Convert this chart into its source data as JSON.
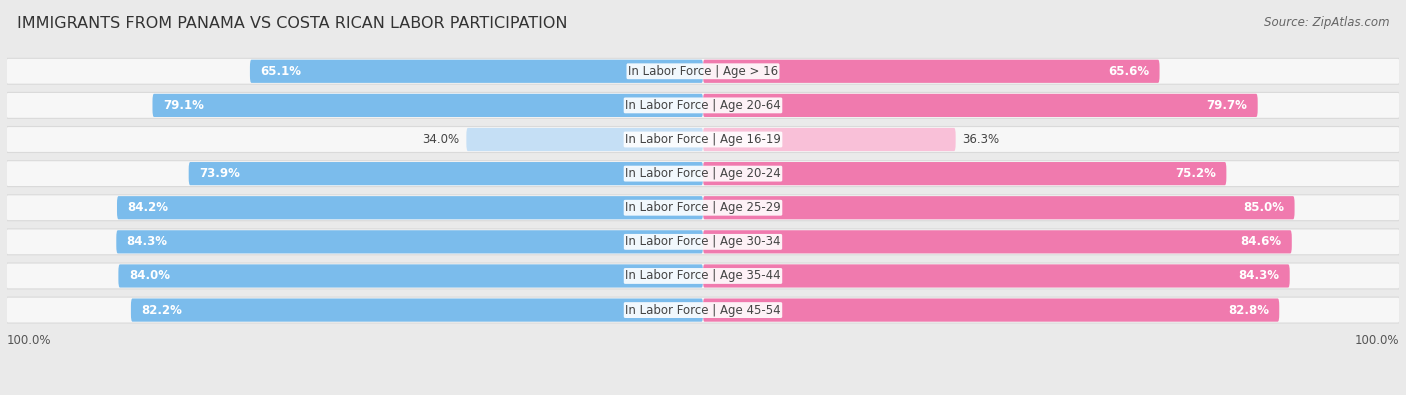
{
  "title": "IMMIGRANTS FROM PANAMA VS COSTA RICAN LABOR PARTICIPATION",
  "source": "Source: ZipAtlas.com",
  "categories": [
    "In Labor Force | Age > 16",
    "In Labor Force | Age 20-64",
    "In Labor Force | Age 16-19",
    "In Labor Force | Age 20-24",
    "In Labor Force | Age 25-29",
    "In Labor Force | Age 30-34",
    "In Labor Force | Age 35-44",
    "In Labor Force | Age 45-54"
  ],
  "panama_values": [
    65.1,
    79.1,
    34.0,
    73.9,
    84.2,
    84.3,
    84.0,
    82.2
  ],
  "costarican_values": [
    65.6,
    79.7,
    36.3,
    75.2,
    85.0,
    84.6,
    84.3,
    82.8
  ],
  "panama_color": "#7BBCEC",
  "panama_color_light": "#C5DFF5",
  "costarican_color": "#F07AAE",
  "costarican_color_light": "#F9C0D8",
  "background_color": "#EAEAEA",
  "row_bg_color": "#F7F7F7",
  "max_value": 100.0,
  "title_fontsize": 11.5,
  "label_fontsize": 8.5,
  "value_fontsize": 8.5,
  "source_fontsize": 8.5,
  "legend_fontsize": 9.5
}
